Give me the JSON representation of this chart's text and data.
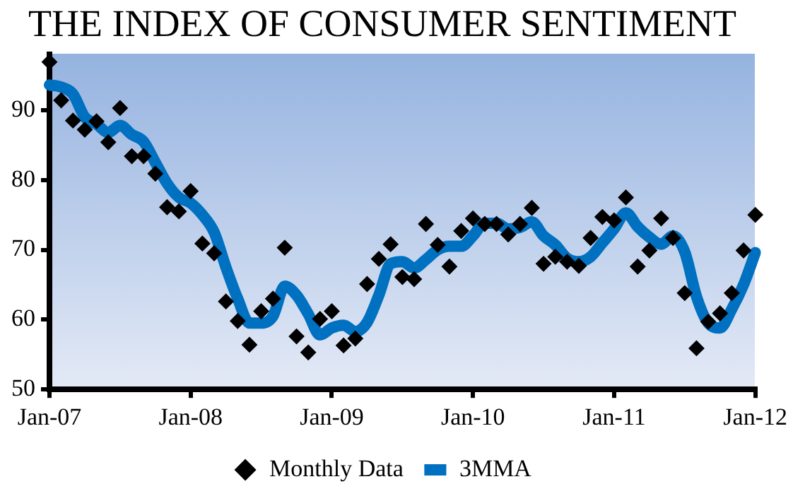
{
  "chart_data": {
    "type": "line",
    "title": "THE INDEX OF CONSUMER SENTIMENT",
    "categories": [
      "Jan-07",
      null,
      null,
      null,
      null,
      null,
      null,
      null,
      null,
      null,
      null,
      null,
      "Jan-08",
      null,
      null,
      null,
      null,
      null,
      null,
      null,
      null,
      null,
      null,
      null,
      "Jan-09",
      null,
      null,
      null,
      null,
      null,
      null,
      null,
      null,
      null,
      null,
      null,
      "Jan-10",
      null,
      null,
      null,
      null,
      null,
      null,
      null,
      null,
      null,
      null,
      null,
      "Jan-11",
      null,
      null,
      null,
      null,
      null,
      null,
      null,
      null,
      null,
      null,
      null,
      "Jan-12"
    ],
    "series": [
      {
        "name": "Monthly Data",
        "type": "scatter",
        "marker": "diamond",
        "color": "#000000",
        "values": [
          96.9,
          91.4,
          88.5,
          87.2,
          88.4,
          85.4,
          90.3,
          83.4,
          83.4,
          80.9,
          76.1,
          75.5,
          78.4,
          70.9,
          69.5,
          62.6,
          59.8,
          56.4,
          61.2,
          63.0,
          70.3,
          57.6,
          55.3,
          60.1,
          61.2,
          56.3,
          57.3,
          65.1,
          68.7,
          70.8,
          66.1,
          65.8,
          73.7,
          70.7,
          67.6,
          72.7,
          74.5,
          73.7,
          73.7,
          72.2,
          73.7,
          76.0,
          68.0,
          69.0,
          68.3,
          67.7,
          71.7,
          74.7,
          74.2,
          77.5,
          67.6,
          69.9,
          74.5,
          71.7,
          63.8,
          55.9,
          59.7,
          60.9,
          63.8,
          69.9,
          75.0
        ]
      },
      {
        "name": "3MMA",
        "type": "line",
        "marker": "none",
        "line_style": "solid",
        "color": "#0070c0",
        "values": [
          93.6,
          93.3,
          92.3,
          89.0,
          88.0,
          86.8,
          87.8,
          86.5,
          85.5,
          82.5,
          79.5,
          77.5,
          76.7,
          75.0,
          72.5,
          67.5,
          63.0,
          59.5,
          59.5,
          60.5,
          64.8,
          63.5,
          60.8,
          57.8,
          58.8,
          59.2,
          58.3,
          59.6,
          63.5,
          68.0,
          68.3,
          67.4,
          68.6,
          70.0,
          70.5,
          70.5,
          72.0,
          73.8,
          73.8,
          73.0,
          73.2,
          74.0,
          72.0,
          70.7,
          68.8,
          68.3,
          69.0,
          71.0,
          73.0,
          75.3,
          73.3,
          71.8,
          70.8,
          72.0,
          69.7,
          63.3,
          59.5,
          58.8,
          61.5,
          65.0,
          69.6
        ]
      }
    ],
    "ylim": [
      50,
      98
    ],
    "yticks": [
      50,
      60,
      70,
      80,
      90
    ],
    "grid": false,
    "legend": "bottom"
  }
}
